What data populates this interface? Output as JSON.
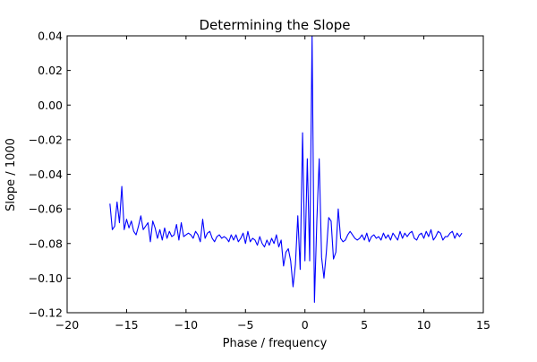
{
  "chart_data": {
    "type": "line",
    "title": "Determining the Slope",
    "xlabel": "Phase / frequency",
    "ylabel": "Slope / 1000",
    "xlim": [
      -20,
      15
    ],
    "ylim": [
      -0.12,
      0.04
    ],
    "xticks": [
      -20,
      -15,
      -10,
      -5,
      0,
      5,
      10,
      15
    ],
    "xtick_labels": [
      "−20",
      "−15",
      "−10",
      "−5",
      "0",
      "5",
      "10",
      "15"
    ],
    "yticks": [
      0.04,
      0.02,
      0.0,
      -0.02,
      -0.04,
      -0.06,
      -0.08,
      -0.1,
      -0.12
    ],
    "ytick_labels": [
      "0.04",
      "0.02",
      "0.00",
      "−0.02",
      "−0.04",
      "−0.06",
      "−0.08",
      "−0.10",
      "−0.12"
    ],
    "grid": false,
    "line_color": "#0000ff",
    "series": [
      {
        "x": [
          -16.4,
          -16.2,
          -16.0,
          -15.8,
          -15.6,
          -15.4,
          -15.2,
          -15.0,
          -14.8,
          -14.6,
          -14.4,
          -14.2,
          -14.0,
          -13.8,
          -13.6,
          -13.4,
          -13.2,
          -13.0,
          -12.8,
          -12.6,
          -12.4,
          -12.2,
          -12.0,
          -11.8,
          -11.6,
          -11.4,
          -11.2,
          -11.0,
          -10.8,
          -10.6,
          -10.4,
          -10.2,
          -10.0,
          -9.8,
          -9.6,
          -9.4,
          -9.2,
          -9.0,
          -8.8,
          -8.6,
          -8.4,
          -8.2,
          -8.0,
          -7.8,
          -7.6,
          -7.4,
          -7.2,
          -7.0,
          -6.8,
          -6.6,
          -6.4,
          -6.2,
          -6.0,
          -5.8,
          -5.6,
          -5.4,
          -5.2,
          -5.0,
          -4.8,
          -4.6,
          -4.4,
          -4.2,
          -4.0,
          -3.8,
          -3.6,
          -3.4,
          -3.2,
          -3.0,
          -2.8,
          -2.6,
          -2.4,
          -2.2,
          -2.0,
          -1.8,
          -1.6,
          -1.4,
          -1.2,
          -1.0,
          -0.8,
          -0.6,
          -0.4,
          -0.2,
          0.0,
          0.2,
          0.4,
          0.6,
          0.8,
          1.0,
          1.2,
          1.4,
          1.6,
          1.8,
          2.0,
          2.2,
          2.4,
          2.6,
          2.8,
          3.0,
          3.2,
          3.4,
          3.6,
          3.8,
          4.0,
          4.2,
          4.4,
          4.6,
          4.8,
          5.0,
          5.2,
          5.4,
          5.6,
          5.8,
          6.0,
          6.2,
          6.4,
          6.6,
          6.8,
          7.0,
          7.2,
          7.4,
          7.6,
          7.8,
          8.0,
          8.2,
          8.4,
          8.6,
          8.8,
          9.0,
          9.2,
          9.4,
          9.6,
          9.8,
          10.0,
          10.2,
          10.4,
          10.6,
          10.8,
          11.0,
          11.2,
          11.4,
          11.6,
          11.8,
          12.0,
          12.2,
          12.4,
          12.6,
          12.8,
          13.0,
          13.2
        ],
        "values": [
          -0.057,
          -0.072,
          -0.07,
          -0.056,
          -0.068,
          -0.047,
          -0.072,
          -0.066,
          -0.071,
          -0.067,
          -0.073,
          -0.075,
          -0.07,
          -0.064,
          -0.072,
          -0.07,
          -0.068,
          -0.079,
          -0.067,
          -0.071,
          -0.077,
          -0.072,
          -0.078,
          -0.071,
          -0.077,
          -0.073,
          -0.076,
          -0.075,
          -0.069,
          -0.078,
          -0.068,
          -0.076,
          -0.075,
          -0.074,
          -0.075,
          -0.077,
          -0.073,
          -0.075,
          -0.079,
          -0.066,
          -0.077,
          -0.074,
          -0.073,
          -0.077,
          -0.079,
          -0.076,
          -0.075,
          -0.077,
          -0.076,
          -0.077,
          -0.079,
          -0.075,
          -0.078,
          -0.075,
          -0.079,
          -0.077,
          -0.074,
          -0.08,
          -0.073,
          -0.079,
          -0.077,
          -0.078,
          -0.081,
          -0.076,
          -0.08,
          -0.082,
          -0.078,
          -0.081,
          -0.077,
          -0.08,
          -0.075,
          -0.082,
          -0.078,
          -0.093,
          -0.085,
          -0.083,
          -0.09,
          -0.105,
          -0.092,
          -0.064,
          -0.095,
          -0.016,
          -0.09,
          -0.031,
          -0.09,
          0.04,
          -0.114,
          -0.067,
          -0.031,
          -0.088,
          -0.1,
          -0.085,
          -0.065,
          -0.067,
          -0.089,
          -0.085,
          -0.06,
          -0.077,
          -0.079,
          -0.078,
          -0.075,
          -0.073,
          -0.075,
          -0.077,
          -0.078,
          -0.077,
          -0.075,
          -0.078,
          -0.074,
          -0.079,
          -0.076,
          -0.075,
          -0.077,
          -0.076,
          -0.078,
          -0.074,
          -0.077,
          -0.075,
          -0.078,
          -0.074,
          -0.076,
          -0.078,
          -0.073,
          -0.077,
          -0.074,
          -0.076,
          -0.074,
          -0.073,
          -0.077,
          -0.078,
          -0.075,
          -0.074,
          -0.077,
          -0.073,
          -0.076,
          -0.072,
          -0.078,
          -0.076,
          -0.073,
          -0.074,
          -0.078,
          -0.076,
          -0.076,
          -0.074,
          -0.073,
          -0.077,
          -0.074,
          -0.076,
          -0.074
        ]
      }
    ]
  }
}
